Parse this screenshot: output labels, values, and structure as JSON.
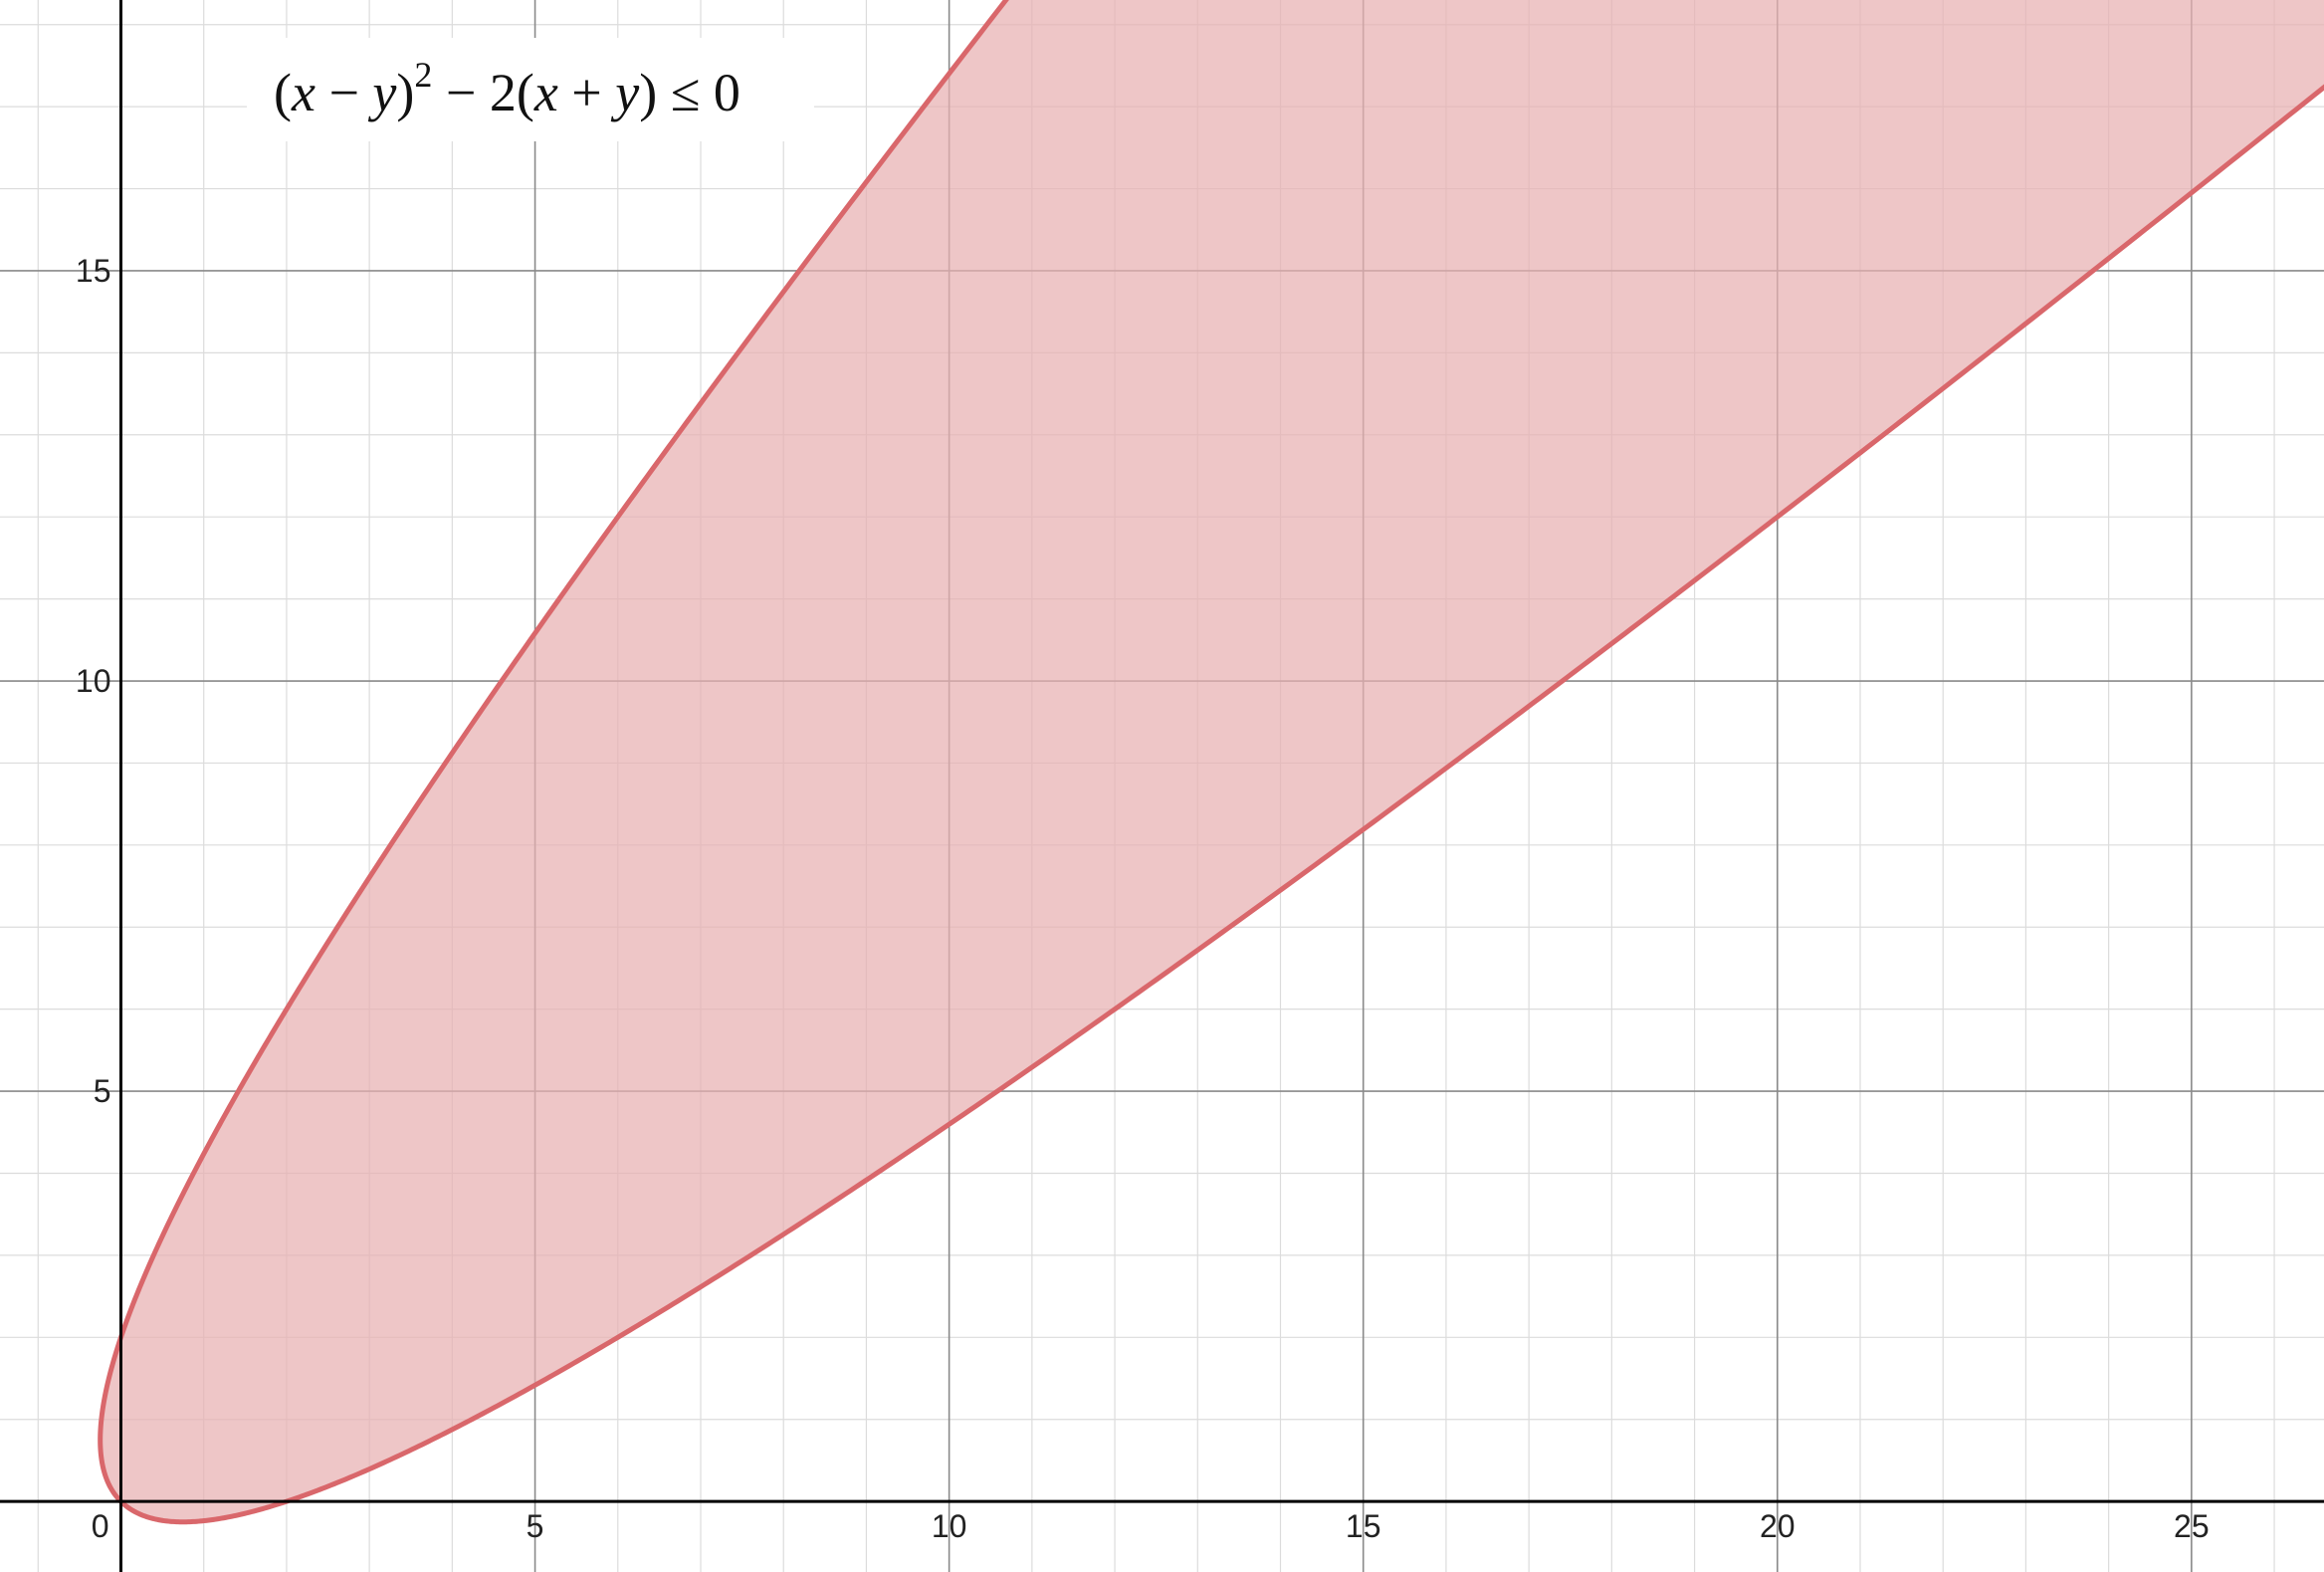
{
  "chart_data": {
    "type": "area",
    "expression": "(x − y)² − 2(x + y) ≤ 0",
    "formula_label": {
      "paren_open": "(",
      "x1": "x",
      "minus1": " − ",
      "y1": "y",
      "paren_close": ")",
      "exp": "2",
      "rest_prefix": "  − 2(",
      "x2": "x",
      "plus": " + ",
      "y2": "y",
      "rest_suffix": ") ≤ 0"
    },
    "region": {
      "name": "",
      "description": "parabola (x−y)^2 = 2(x+y), vertex at (0,0), region inside filled",
      "boundary_points": [
        {
          "x": 0,
          "y": 0
        },
        {
          "x": 0,
          "y": 2
        },
        {
          "x": 0.5,
          "y": 3.5
        },
        {
          "x": 2,
          "y": 6
        },
        {
          "x": 4.6,
          "y": 10
        },
        {
          "x": 8.2,
          "y": 15
        },
        {
          "x": 10.6,
          "y": 18.3
        },
        {
          "x": 26.6,
          "y": 18.3
        },
        {
          "x": 24,
          "y": 15
        },
        {
          "x": 20,
          "y": 12
        },
        {
          "x": 15,
          "y": 8.1
        },
        {
          "x": 10,
          "y": 4.6
        },
        {
          "x": 5,
          "y": 1.4
        },
        {
          "x": 2,
          "y": 0
        },
        {
          "x": 0.8,
          "y": -0.25
        },
        {
          "x": -0.25,
          "y": 0.8
        }
      ]
    },
    "xlim": [
      -1.46,
      26.6
    ],
    "ylim": [
      -0.86,
      18.3
    ],
    "x_ticks": [
      5,
      10,
      15,
      20,
      25
    ],
    "y_ticks": [
      5,
      10,
      15
    ],
    "origin_label": "0",
    "x_tick_labels": [
      "5",
      "10",
      "15",
      "20",
      "25"
    ],
    "y_tick_labels": [
      "5",
      "10",
      "15"
    ],
    "grid": true,
    "minor_step": 1,
    "major_step": 5,
    "colors": {
      "fill": "#e8b0b2",
      "stroke": "#d9676b",
      "axis": "#000000",
      "major_grid": "#8a8a8a",
      "minor_grid": "#dcdcdc"
    }
  }
}
